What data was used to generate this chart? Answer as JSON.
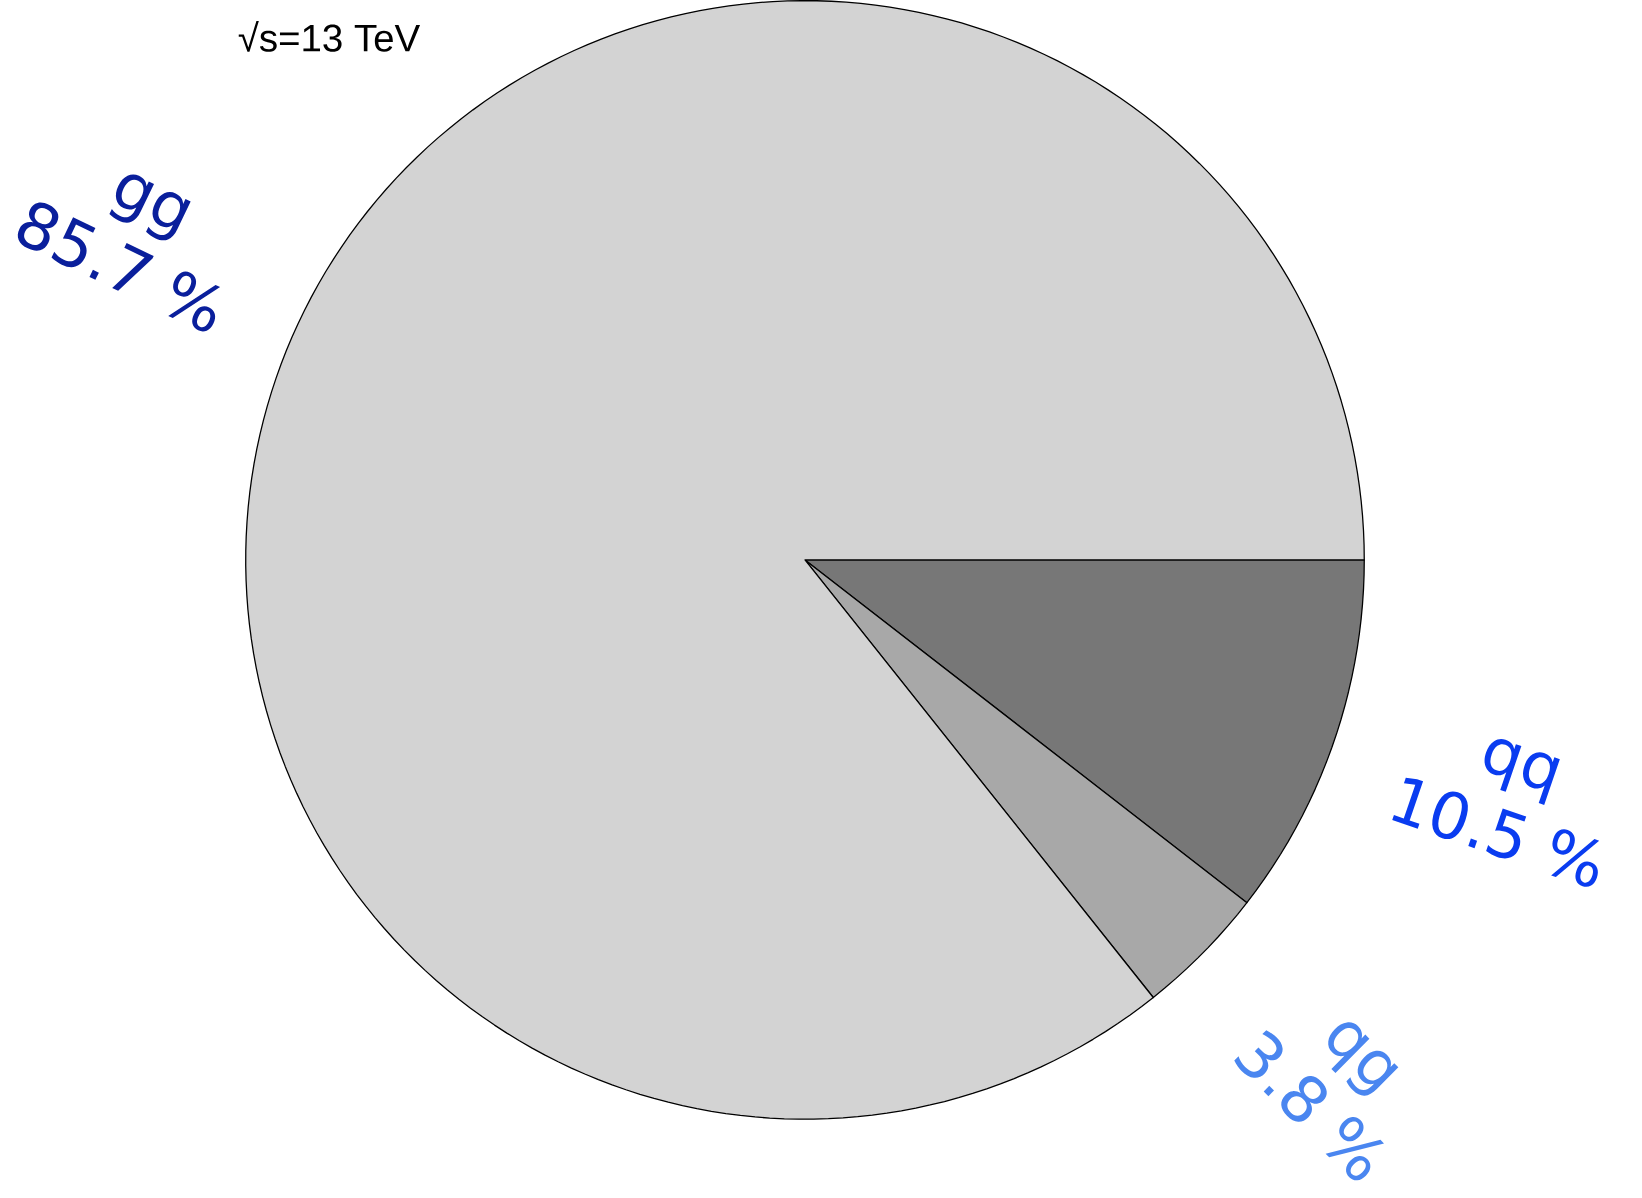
{
  "chart_data": {
    "type": "pie",
    "title": "√s=13 TeV",
    "categories": [
      "qq",
      "qg",
      "gg"
    ],
    "values": [
      10.5,
      3.8,
      85.7
    ],
    "value_labels": [
      "10.5 %",
      "3.8 %",
      "85.7 %"
    ],
    "colors": [
      "#777777",
      "#a8a8a8",
      "#d3d3d3"
    ]
  }
}
